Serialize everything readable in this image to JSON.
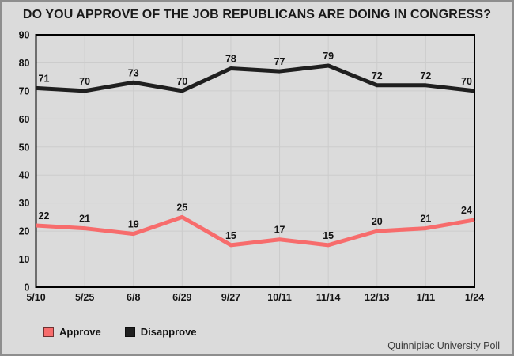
{
  "title": "DO YOU APPROVE OF THE JOB REPUBLICANS ARE DOING IN CONGRESS?",
  "footer": "Quinnipiac University Poll",
  "colors": {
    "approve": "#f76c6c",
    "disapprove": "#1f1f1f",
    "background": "#dbdbdb",
    "gridline": "#cccccc",
    "plot_border": "#000000"
  },
  "legend": [
    {
      "label": "Approve",
      "color": "#f76c6c"
    },
    {
      "label": "Disapprove",
      "color": "#1f1f1f"
    }
  ],
  "chart_data": {
    "type": "line",
    "title": "DO YOU APPROVE OF THE JOB REPUBLICANS ARE DOING IN CONGRESS?",
    "categories": [
      "5/10",
      "5/25",
      "6/8",
      "6/29",
      "9/27",
      "10/11",
      "11/14",
      "12/13",
      "1/11",
      "1/24"
    ],
    "series": [
      {
        "name": "Approve",
        "color": "#f76c6c",
        "values": [
          22,
          21,
          19,
          25,
          15,
          17,
          15,
          20,
          21,
          24
        ]
      },
      {
        "name": "Disapprove",
        "color": "#1f1f1f",
        "values": [
          71,
          70,
          73,
          70,
          78,
          77,
          79,
          72,
          72,
          70
        ]
      }
    ],
    "xlabel": "",
    "ylabel": "",
    "ylim": [
      0,
      90
    ],
    "yticks": [
      0,
      10,
      20,
      30,
      40,
      50,
      60,
      70,
      80,
      90
    ],
    "grid": true,
    "data_labels": true,
    "legend_position": "bottom-left",
    "annotation": "Quinnipiac University Poll"
  }
}
